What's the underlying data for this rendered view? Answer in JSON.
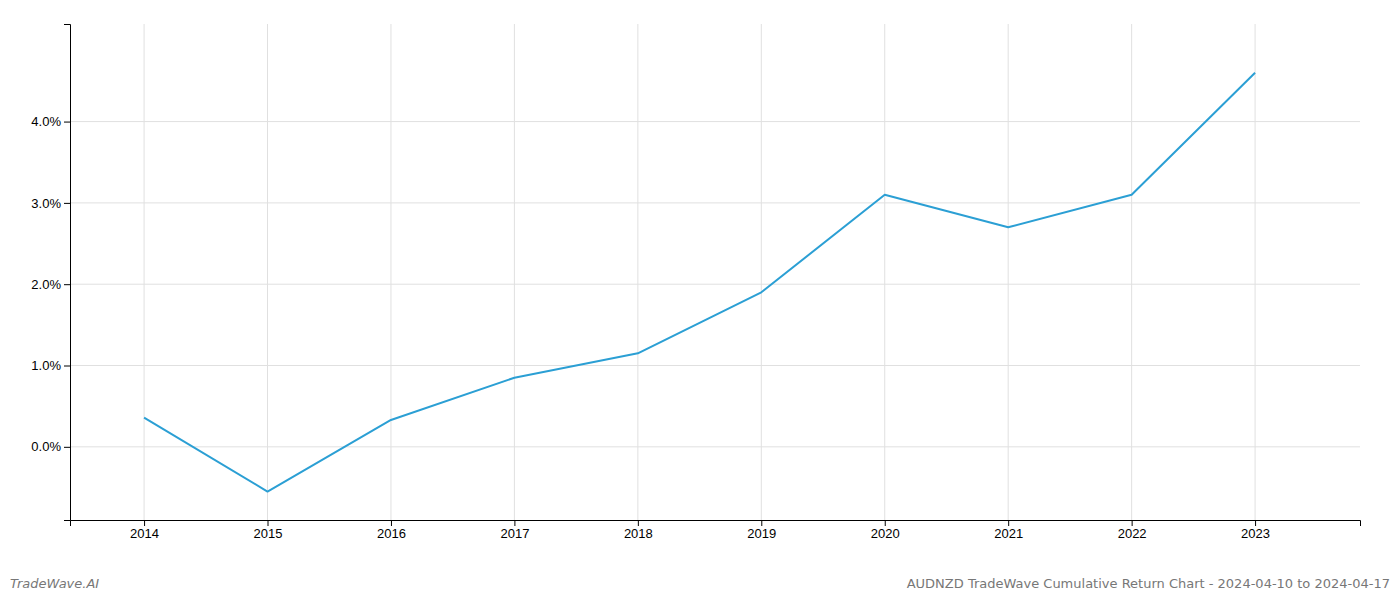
{
  "chart_data": {
    "type": "line",
    "title": "AUDNZD TradeWave Cumulative Return Chart - 2024-04-10 to 2024-04-17",
    "annotations": [
      "TradeWave.AI"
    ],
    "x": [
      2014,
      2015,
      2016,
      2017,
      2018,
      2019,
      2020,
      2021,
      2022,
      2023
    ],
    "values": [
      0.0036,
      -0.0055,
      0.0033,
      0.0085,
      0.0115,
      0.019,
      0.031,
      0.027,
      0.031,
      0.046
    ],
    "color": "#2b9fd4",
    "xlim": [
      2013.4,
      2023.85
    ],
    "xticks": [
      2014,
      2015,
      2016,
      2017,
      2018,
      2019,
      2020,
      2021,
      2022,
      2023
    ],
    "ylim": [
      -0.009,
      0.052
    ],
    "yticks": [
      {
        "value": 0.0,
        "label": "0.0%"
      },
      {
        "value": 0.01,
        "label": "1.0%"
      },
      {
        "value": 0.02,
        "label": "2.0%"
      },
      {
        "value": 0.03,
        "label": "3.0%"
      },
      {
        "value": 0.04,
        "label": "4.0%"
      }
    ],
    "grid": true
  }
}
